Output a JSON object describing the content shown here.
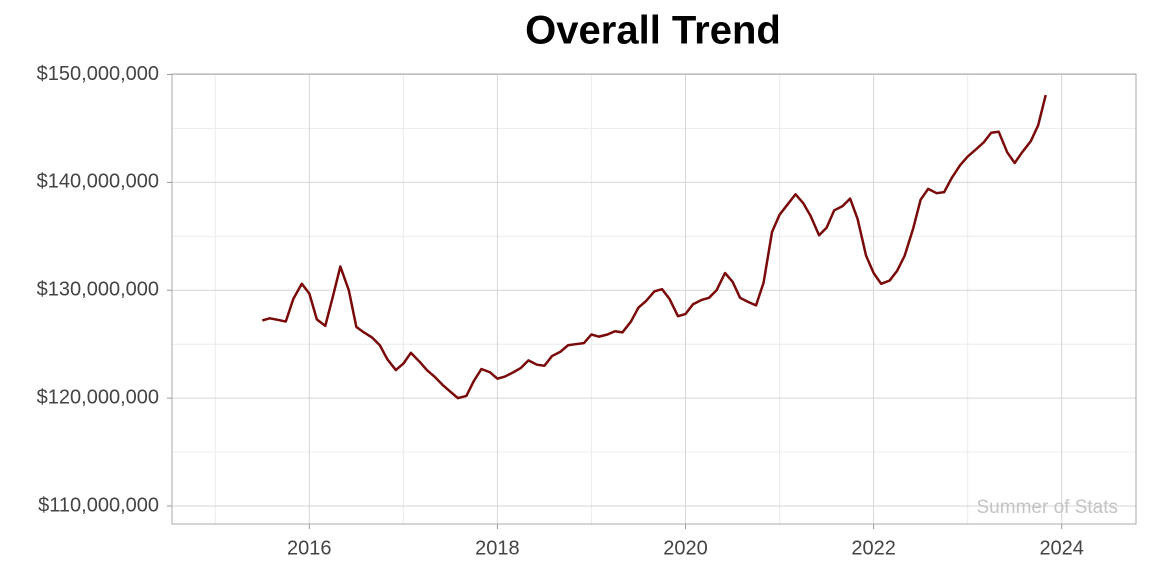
{
  "chart_data": {
    "type": "line",
    "title": "Overall Trend",
    "x": [
      2015.5,
      2015.58,
      2015.67,
      2015.75,
      2015.83,
      2015.92,
      2016,
      2016.08,
      2016.17,
      2016.25,
      2016.33,
      2016.42,
      2016.5,
      2016.58,
      2016.67,
      2016.75,
      2016.83,
      2016.92,
      2017,
      2017.08,
      2017.17,
      2017.25,
      2017.33,
      2017.42,
      2017.5,
      2017.58,
      2017.67,
      2017.75,
      2017.83,
      2017.92,
      2018,
      2018.08,
      2018.17,
      2018.25,
      2018.33,
      2018.42,
      2018.5,
      2018.58,
      2018.67,
      2018.75,
      2018.83,
      2018.92,
      2019,
      2019.08,
      2019.17,
      2019.25,
      2019.33,
      2019.42,
      2019.5,
      2019.58,
      2019.67,
      2019.75,
      2019.83,
      2019.92,
      2020,
      2020.08,
      2020.17,
      2020.25,
      2020.33,
      2020.42,
      2020.5,
      2020.58,
      2020.67,
      2020.75,
      2020.83,
      2020.92,
      2021,
      2021.08,
      2021.17,
      2021.25,
      2021.33,
      2021.42,
      2021.5,
      2021.58,
      2021.67,
      2021.75,
      2021.83,
      2021.92,
      2022,
      2022.08,
      2022.17,
      2022.25,
      2022.33,
      2022.42,
      2022.5,
      2022.58,
      2022.67,
      2022.75,
      2022.83,
      2022.92,
      2023,
      2023.08,
      2023.17,
      2023.25,
      2023.33,
      2023.42,
      2023.5,
      2023.58,
      2023.67,
      2023.75,
      2023.83
    ],
    "series": [
      {
        "color": "#7a0a0a",
        "values": [
          127200000,
          127400000,
          127250000,
          127100000,
          129200000,
          130600000,
          129700000,
          127300000,
          126700000,
          129400000,
          132200000,
          130000000,
          126600000,
          126100000,
          125600000,
          124900000,
          123600000,
          122600000,
          123200000,
          124200000,
          123400000,
          122600000,
          122000000,
          121200000,
          120600000,
          120000000,
          120200000,
          121600000,
          122700000,
          122400000,
          121800000,
          122000000,
          122400000,
          122800000,
          123500000,
          123100000,
          123000000,
          123900000,
          124300000,
          124900000,
          125000000,
          125100000,
          125900000,
          125700000,
          125900000,
          126200000,
          126100000,
          127100000,
          128400000,
          129000000,
          129900000,
          130100000,
          129200000,
          127600000,
          127800000,
          128700000,
          129100000,
          129300000,
          130000000,
          131600000,
          130800000,
          129300000,
          128900000,
          128600000,
          130700000,
          135400000,
          137000000,
          137900000,
          138900000,
          138100000,
          136900000,
          135100000,
          135800000,
          137400000,
          137800000,
          138500000,
          136600000,
          133200000,
          131600000,
          130600000,
          130900000,
          131800000,
          133200000,
          135700000,
          138400000,
          139400000,
          139000000,
          139100000,
          140400000,
          141600000,
          142400000,
          143000000,
          143700000,
          144600000,
          144700000,
          142800000,
          141800000,
          142800000,
          143800000,
          145300000,
          148100000
        ]
      }
    ],
    "xlim": [
      2014.54,
      2024.79
    ],
    "xticks": [
      2016,
      2018,
      2020,
      2022,
      2024
    ],
    "ylim": [
      108330000,
      150050000
    ],
    "yticks": [
      {
        "value": 110000000,
        "label": "$110,000,000"
      },
      {
        "value": 120000000,
        "label": "$120,000,000"
      },
      {
        "value": 130000000,
        "label": "$130,000,000"
      },
      {
        "value": 140000000,
        "label": "$140,000,000"
      },
      {
        "value": 150000000,
        "label": "$150,000,000"
      }
    ],
    "grid": true,
    "annotation": "Summer of Stats"
  }
}
